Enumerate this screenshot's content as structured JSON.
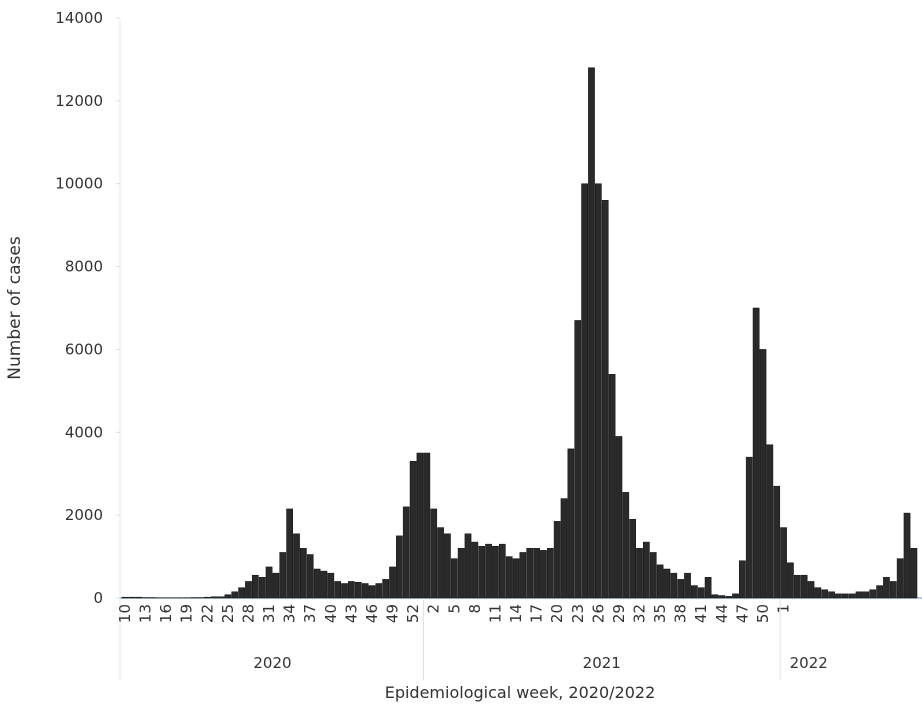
{
  "chart_data": {
    "type": "bar",
    "x_label": "Epidemiological week, 2020/2022",
    "y_label": "Number of cases",
    "color": "#2a2a2a",
    "ylim": [
      0,
      14000
    ],
    "yticks": [
      0,
      2000,
      4000,
      6000,
      8000,
      10000,
      12000,
      14000
    ],
    "groups": [
      {
        "label": "2020",
        "categories": [
          "10",
          null,
          null,
          "13",
          null,
          null,
          "16",
          null,
          null,
          "19",
          null,
          null,
          "22",
          null,
          null,
          "25",
          null,
          null,
          "28",
          null,
          null,
          "31",
          null,
          null,
          "34",
          null,
          null,
          "37",
          null,
          null,
          "40",
          null,
          null,
          "43",
          null,
          null,
          "46",
          null,
          null,
          "49",
          null,
          null,
          "52",
          null
        ],
        "values": [
          20,
          20,
          20,
          10,
          10,
          5,
          5,
          5,
          5,
          5,
          10,
          10,
          20,
          30,
          30,
          80,
          150,
          250,
          400,
          550,
          500,
          750,
          600,
          1100,
          2150,
          1550,
          1200,
          1050,
          700,
          650,
          600,
          400,
          350,
          400,
          380,
          350,
          300,
          350,
          450,
          750,
          1500,
          2200,
          3300,
          3500
        ]
      },
      {
        "label": "2021",
        "categories": [
          null,
          "2",
          null,
          null,
          "5",
          null,
          null,
          "8",
          null,
          null,
          "11",
          null,
          null,
          "14",
          null,
          null,
          "17",
          null,
          null,
          "20",
          null,
          null,
          "23",
          null,
          null,
          "26",
          null,
          null,
          "29",
          null,
          null,
          "32",
          null,
          null,
          "35",
          null,
          null,
          "38",
          null,
          null,
          "41",
          null,
          null,
          "44",
          null,
          null,
          "47",
          null,
          null,
          "50",
          null,
          null
        ],
        "values": [
          3500,
          2150,
          1700,
          1550,
          950,
          1200,
          1550,
          1350,
          1250,
          1300,
          1250,
          1300,
          1000,
          950,
          1100,
          1200,
          1200,
          1150,
          1200,
          1850,
          2400,
          3600,
          6700,
          10000,
          12800,
          10000,
          9600,
          5400,
          3900,
          2550,
          1900,
          1200,
          1350,
          1100,
          800,
          700,
          600,
          450,
          600,
          300,
          250,
          500,
          80,
          60,
          40,
          100,
          900,
          3400,
          7000,
          6000,
          3700,
          2700
        ]
      },
      {
        "label": "2022",
        "categories": [
          "1",
          null,
          null,
          null,
          null,
          null,
          null,
          null,
          null,
          null,
          null,
          null,
          null,
          null,
          null,
          null,
          null,
          null,
          null,
          null
        ],
        "values": [
          1700,
          850,
          550,
          550,
          400,
          250,
          200,
          150,
          100,
          100,
          100,
          150,
          150,
          200,
          300,
          500,
          400,
          950,
          2050,
          1200
        ]
      }
    ]
  }
}
